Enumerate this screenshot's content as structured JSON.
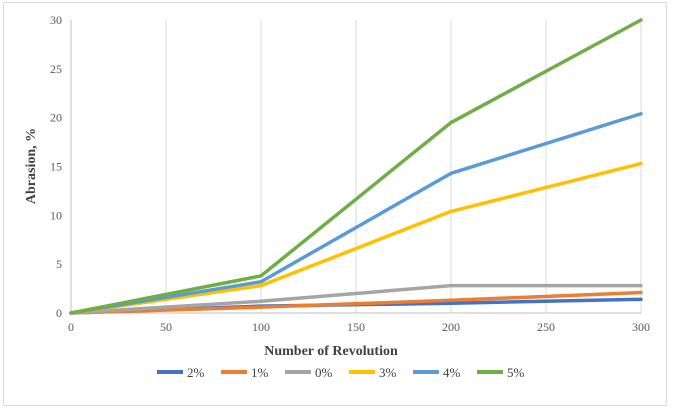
{
  "chart_data": {
    "type": "line",
    "title": "",
    "xlabel": "Number of Revolution",
    "ylabel": "Abrasion, %",
    "x": [
      0,
      100,
      200,
      300
    ],
    "xlim": [
      0,
      300
    ],
    "ylim": [
      0,
      30
    ],
    "xticks": [
      0,
      50,
      100,
      150,
      200,
      250,
      300
    ],
    "yticks": [
      0,
      5,
      10,
      15,
      20,
      25,
      30
    ],
    "grid": "vertical",
    "legend_position": "bottom",
    "series": [
      {
        "name": "2%",
        "color": "#4472C4",
        "values": [
          0,
          0.7,
          1.0,
          1.4
        ]
      },
      {
        "name": "1%",
        "color": "#ED7D31",
        "values": [
          0,
          0.6,
          1.3,
          2.1
        ]
      },
      {
        "name": "0%",
        "color": "#A5A5A5",
        "values": [
          0,
          1.2,
          2.8,
          2.8
        ]
      },
      {
        "name": "3%",
        "color": "#FFC000",
        "values": [
          0,
          2.8,
          10.4,
          15.3
        ]
      },
      {
        "name": "4%",
        "color": "#5B9BD5",
        "values": [
          0,
          3.2,
          14.3,
          20.4
        ]
      },
      {
        "name": "5%",
        "color": "#70AD47",
        "values": [
          0,
          3.8,
          19.5,
          30.0
        ]
      }
    ]
  }
}
